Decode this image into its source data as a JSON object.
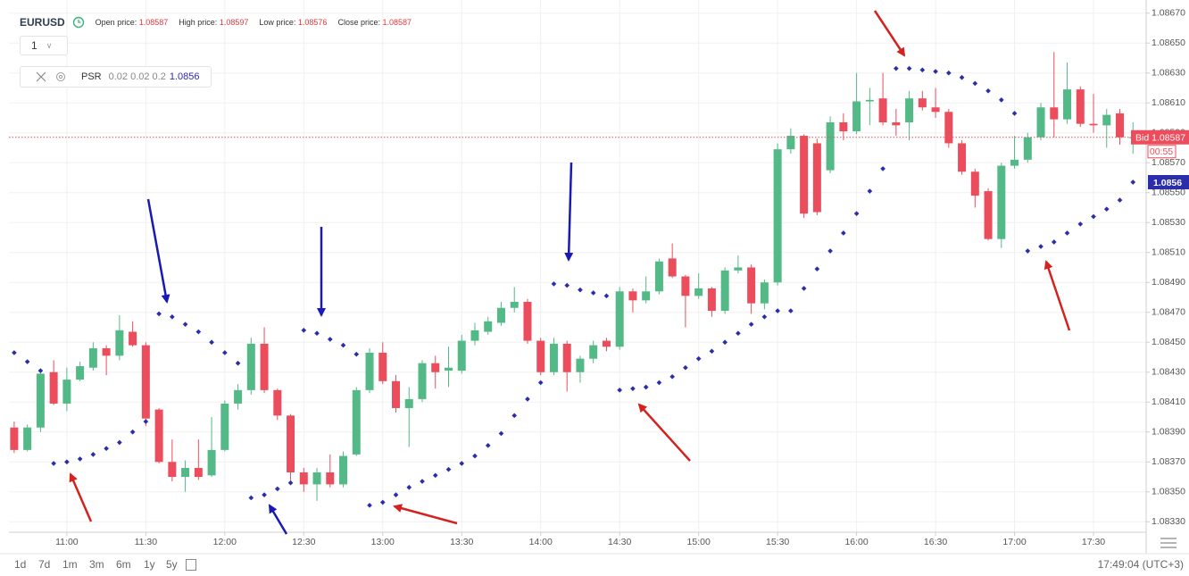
{
  "header": {
    "symbol": "EURUSD",
    "interval": "1",
    "fields": [
      {
        "label": "Open price:",
        "value": 1.08587
      },
      {
        "label": "High price:",
        "value": 1.08597
      },
      {
        "label": "Low price:",
        "value": 1.08576
      },
      {
        "label": "Close price:",
        "value": 1.08587
      }
    ],
    "indicator": {
      "name": "PSR",
      "params": "0.02 0.02 0.2",
      "value": 1.0856
    }
  },
  "footer": {
    "ranges": [
      "1d",
      "7d",
      "1m",
      "3m",
      "6m",
      "1y",
      "5y"
    ],
    "clock": "17:49:04 (UTC+3)"
  },
  "chart_data": {
    "type": "candlestick",
    "x": [
      "10:40",
      "10:45",
      "10:50",
      "10:55",
      "11:00",
      "11:05",
      "11:10",
      "11:15",
      "11:20",
      "11:25",
      "11:30",
      "11:35",
      "11:40",
      "11:45",
      "11:50",
      "11:55",
      "12:00",
      "12:05",
      "12:10",
      "12:15",
      "12:20",
      "12:25",
      "12:30",
      "12:35",
      "12:40",
      "12:45",
      "12:50",
      "12:55",
      "13:00",
      "13:05",
      "13:10",
      "13:15",
      "13:20",
      "13:25",
      "13:30",
      "13:35",
      "13:40",
      "13:45",
      "13:50",
      "13:55",
      "14:00",
      "14:05",
      "14:10",
      "14:15",
      "14:20",
      "14:25",
      "14:30",
      "14:35",
      "14:40",
      "14:45",
      "14:50",
      "14:55",
      "15:00",
      "15:05",
      "15:10",
      "15:15",
      "15:20",
      "15:25",
      "15:30",
      "15:35",
      "15:40",
      "15:45",
      "15:50",
      "15:55",
      "16:00",
      "16:05",
      "16:10",
      "16:15",
      "16:20",
      "16:25",
      "16:30",
      "16:35",
      "16:40",
      "16:45",
      "16:50",
      "16:55",
      "17:00",
      "17:05",
      "17:10",
      "17:15",
      "17:20",
      "17:25",
      "17:30",
      "17:35",
      "17:40",
      "17:45"
    ],
    "open": [
      1.08393,
      1.08378,
      1.08393,
      1.0843,
      1.08409,
      1.08425,
      1.08433,
      1.08446,
      1.08441,
      1.08457,
      1.08448,
      1.08405,
      1.0837,
      1.0836,
      1.08366,
      1.08361,
      1.08378,
      1.08409,
      1.08418,
      1.08449,
      1.08418,
      1.08401,
      1.08363,
      1.08355,
      1.08363,
      1.08355,
      1.08375,
      1.08418,
      1.08443,
      1.08424,
      1.08406,
      1.08412,
      1.08436,
      1.08431,
      1.08431,
      1.08451,
      1.08457,
      1.08463,
      1.08473,
      1.08477,
      1.08451,
      1.0843,
      1.08449,
      1.0843,
      1.08439,
      1.08451,
      1.08447,
      1.08484,
      1.08478,
      1.08484,
      1.08506,
      1.08494,
      1.08481,
      1.08486,
      1.08471,
      1.08498,
      1.085,
      1.08476,
      1.0849,
      1.08579,
      1.08588,
      1.08583,
      1.08565,
      1.08597,
      1.08591,
      1.08611,
      1.08613,
      1.08597,
      1.08597,
      1.08613,
      1.08607,
      1.08604,
      1.08583,
      1.08564,
      1.08551,
      1.08519,
      1.08568,
      1.08572,
      1.08587,
      1.08607,
      1.08599,
      1.08619,
      1.08596,
      1.08595,
      1.08603,
      1.08587
    ],
    "high": [
      1.08397,
      1.08395,
      1.08431,
      1.08438,
      1.08433,
      1.08437,
      1.0845,
      1.08448,
      1.08468,
      1.08464,
      1.0845,
      1.08406,
      1.08385,
      1.08371,
      1.08385,
      1.084,
      1.08411,
      1.08422,
      1.08453,
      1.0846,
      1.08419,
      1.08402,
      1.08366,
      1.08366,
      1.08375,
      1.08377,
      1.0842,
      1.08446,
      1.0845,
      1.08428,
      1.0842,
      1.08438,
      1.08441,
      1.08447,
      1.08455,
      1.08463,
      1.08467,
      1.08477,
      1.08487,
      1.08479,
      1.08453,
      1.08453,
      1.08451,
      1.08441,
      1.08451,
      1.08453,
      1.08487,
      1.08486,
      1.08494,
      1.08506,
      1.08516,
      1.08495,
      1.08496,
      1.08487,
      1.085,
      1.08508,
      1.08502,
      1.08492,
      1.08583,
      1.08593,
      1.08589,
      1.08586,
      1.08601,
      1.08603,
      1.0863,
      1.0862,
      1.0863,
      1.08606,
      1.08618,
      1.08618,
      1.0862,
      1.08606,
      1.08585,
      1.08566,
      1.08553,
      1.0857,
      1.08588,
      1.0859,
      1.0861,
      1.08644,
      1.08637,
      1.08621,
      1.08616,
      1.08606,
      1.08606,
      1.08597
    ],
    "low": [
      1.08376,
      1.08377,
      1.0839,
      1.08408,
      1.08404,
      1.08424,
      1.08431,
      1.08428,
      1.08438,
      1.08447,
      1.08394,
      1.08369,
      1.08357,
      1.0835,
      1.08358,
      1.0836,
      1.08377,
      1.08405,
      1.08415,
      1.08416,
      1.08398,
      1.08356,
      1.0835,
      1.08344,
      1.08353,
      1.08353,
      1.08374,
      1.08416,
      1.08422,
      1.08403,
      1.0838,
      1.0841,
      1.08419,
      1.0842,
      1.08429,
      1.08448,
      1.08455,
      1.08461,
      1.0847,
      1.08449,
      1.08428,
      1.08428,
      1.08417,
      1.08423,
      1.08436,
      1.08444,
      1.08445,
      1.0847,
      1.08476,
      1.08482,
      1.08493,
      1.0846,
      1.08479,
      1.08467,
      1.08469,
      1.08496,
      1.08469,
      1.08472,
      1.08488,
      1.08576,
      1.08533,
      1.08535,
      1.08563,
      1.08585,
      1.08589,
      1.08595,
      1.08595,
      1.08588,
      1.08585,
      1.08605,
      1.086,
      1.0858,
      1.08562,
      1.0854,
      1.08518,
      1.08513,
      1.08566,
      1.0857,
      1.08585,
      1.08587,
      1.08596,
      1.08594,
      1.0859,
      1.0858,
      1.08582,
      1.08576
    ],
    "close": [
      1.08378,
      1.08393,
      1.08429,
      1.08409,
      1.08425,
      1.08434,
      1.08446,
      1.08441,
      1.08458,
      1.08448,
      1.08399,
      1.0837,
      1.0836,
      1.08366,
      1.0836,
      1.08378,
      1.08409,
      1.08418,
      1.08449,
      1.08418,
      1.08401,
      1.08363,
      1.08355,
      1.08363,
      1.08355,
      1.08374,
      1.08418,
      1.08443,
      1.08424,
      1.08406,
      1.08412,
      1.08436,
      1.0843,
      1.08433,
      1.08451,
      1.08458,
      1.08464,
      1.08473,
      1.08477,
      1.08451,
      1.0843,
      1.08449,
      1.0843,
      1.08439,
      1.08448,
      1.08447,
      1.08484,
      1.08478,
      1.08484,
      1.08504,
      1.08494,
      1.08481,
      1.08486,
      1.08471,
      1.08498,
      1.085,
      1.08476,
      1.0849,
      1.08579,
      1.08588,
      1.08536,
      1.08537,
      1.08597,
      1.08591,
      1.08611,
      1.08612,
      1.08597,
      1.08595,
      1.08613,
      1.08607,
      1.08604,
      1.08583,
      1.08564,
      1.08548,
      1.08519,
      1.08568,
      1.08572,
      1.08587,
      1.08607,
      1.08599,
      1.08619,
      1.08596,
      1.08595,
      1.08602,
      1.08587,
      1.08587
    ],
    "up_color": "#53b987",
    "down_color": "#eb4d5c",
    "psar": {
      "color": "#2b2dab",
      "values": [
        1.08443,
        1.08437,
        1.08431,
        1.08369,
        1.0837,
        1.08372,
        1.08375,
        1.08379,
        1.08383,
        1.0839,
        1.08397,
        1.08469,
        1.08467,
        1.08462,
        1.08457,
        1.0845,
        1.08443,
        1.08436,
        1.08346,
        1.08348,
        1.08352,
        1.08356,
        1.08458,
        1.08456,
        1.08452,
        1.08448,
        1.08442,
        1.08341,
        1.08343,
        1.08348,
        1.08353,
        1.08357,
        1.08361,
        1.08365,
        1.08369,
        1.08374,
        1.08381,
        1.08389,
        1.08401,
        1.08412,
        1.08423,
        1.08489,
        1.08488,
        1.08485,
        1.08483,
        1.08481,
        1.08418,
        1.08419,
        1.0842,
        1.08423,
        1.08427,
        1.08433,
        1.08439,
        1.08444,
        1.0845,
        1.08456,
        1.08462,
        1.08467,
        1.08471,
        1.08471,
        1.08486,
        1.08499,
        1.08511,
        1.08523,
        1.08536,
        1.08551,
        1.08566,
        1.08633,
        1.08633,
        1.08632,
        1.08631,
        1.0863,
        1.08627,
        1.08623,
        1.08618,
        1.08612,
        1.08603,
        1.08511,
        1.08514,
        1.08517,
        1.08523,
        1.08529,
        1.08534,
        1.08539,
        1.08545,
        1.08557
      ]
    },
    "bid": {
      "label": "Bid",
      "value": 1.08587,
      "countdown": "00:55"
    },
    "xlim": [
      "10:38",
      "17:50"
    ],
    "xticks": [
      "11:00",
      "11:30",
      "12:00",
      "12:30",
      "13:00",
      "13:30",
      "14:00",
      "14:30",
      "15:00",
      "15:30",
      "16:00",
      "16:30",
      "17:00",
      "17:30"
    ],
    "ylim": [
      1.08323,
      1.08674
    ],
    "yticks": [
      {
        "value": 1.0833,
        "label": "1.08330"
      },
      {
        "value": 1.0835,
        "label": "1.08350"
      },
      {
        "value": 1.0837,
        "label": "1.08370"
      },
      {
        "value": 1.0839,
        "label": "1.08390"
      },
      {
        "value": 1.0841,
        "label": "1.08410"
      },
      {
        "value": 1.0843,
        "label": "1.08430"
      },
      {
        "value": 1.0845,
        "label": "1.08450"
      },
      {
        "value": 1.0847,
        "label": "1.08470"
      },
      {
        "value": 1.0849,
        "label": "1.08490"
      },
      {
        "value": 1.0851,
        "label": "1.08510"
      },
      {
        "value": 1.0853,
        "label": "1.08530"
      },
      {
        "value": 1.0855,
        "label": "1.08550"
      },
      {
        "value": 1.0857,
        "label": "1.08570"
      },
      {
        "value": 1.0859,
        "label": "1.08590"
      },
      {
        "value": 1.0861,
        "label": "1.08610"
      },
      {
        "value": 1.0863,
        "label": "1.08630"
      },
      {
        "value": 1.0865,
        "label": "1.08650"
      },
      {
        "value": 1.0867,
        "label": "1.08670"
      }
    ],
    "grid": true
  }
}
